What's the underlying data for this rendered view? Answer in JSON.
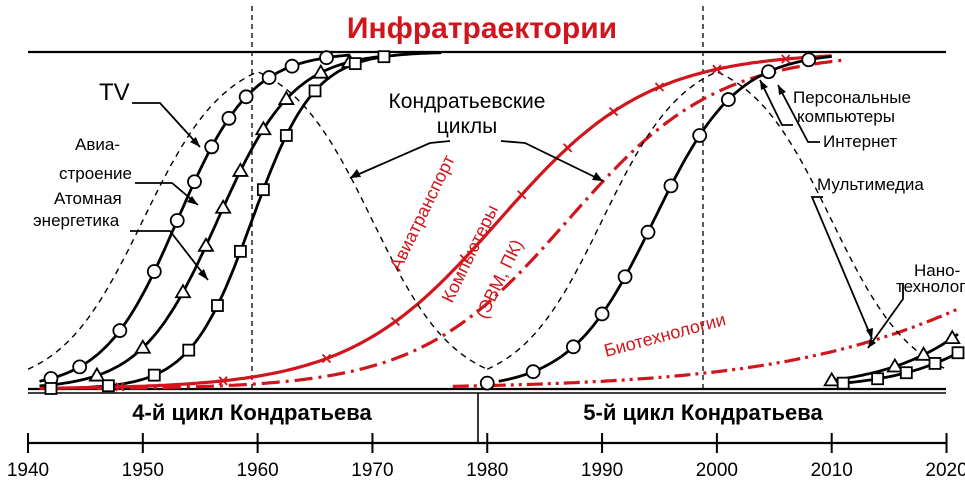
{
  "chart_data": {
    "type": "line",
    "title": "Инфратраектории",
    "title_color": "#d0161c",
    "x_ticks": [
      1940,
      1950,
      1960,
      1970,
      1980,
      1990,
      2000,
      2010,
      2020
    ],
    "x_range": [
      1940,
      2021
    ],
    "y_range": [
      0,
      1
    ],
    "grid": false,
    "vertical_markers": [
      1960,
      2000
    ],
    "cycles": [
      {
        "label": "4-й цикл Кондратьева",
        "start": 1940,
        "end": 1980
      },
      {
        "label": "5-й цикл Кондратьева",
        "start": 1980,
        "end": 2020
      }
    ],
    "series": [
      {
        "name": "TV",
        "color": "#000000",
        "style": "solid",
        "marker": "circle",
        "x_markers": [
          1942,
          1944.5,
          1948,
          1951,
          1953,
          1954.5,
          1956,
          1957.5,
          1959,
          1961,
          1963,
          1966
        ],
        "midpoint": 1953,
        "width": 3.2,
        "x_start": 1941,
        "x_end": 1968
      },
      {
        "name": "Авиастроение",
        "color": "#000000",
        "style": "solid",
        "marker": "triangle",
        "x_markers": [
          1946,
          1950,
          1953.5,
          1955.5,
          1957,
          1958.5,
          1960.5,
          1962.5,
          1965.5,
          1968
        ],
        "midpoint": 1956.5,
        "width": 3.3,
        "x_start": 1941,
        "x_end": 1971
      },
      {
        "name": "Атомная энергетика",
        "color": "#000000",
        "style": "solid",
        "marker": "square",
        "x_markers": [
          1942,
          1947,
          1951,
          1954,
          1956.5,
          1958.5,
          1960.5,
          1962.5,
          1965,
          1968.5,
          1971
        ],
        "midpoint": 1959.5,
        "width": 2.7,
        "x_start": 1941,
        "x_end": 1976
      },
      {
        "name": "Авиатранспорт",
        "color": "#d0161c",
        "style": "solid",
        "marker": "x",
        "x_markers": [
          1948,
          1957,
          1966,
          1972,
          1978,
          1983,
          1987,
          1991,
          1995,
          2000,
          2006
        ],
        "midpoint": 1981,
        "width": 6.5,
        "x_start": 1941,
        "x_end": 2010
      },
      {
        "name": "Компьютеры (ЭВМ, ПК)",
        "color": "#d0161c",
        "style": "dashdot",
        "marker": "none",
        "midpoint": 1987,
        "width": 6.5,
        "x_start": 1946,
        "x_end": 2011
      },
      {
        "name": "Биотехнологии",
        "color": "#d0161c",
        "style": "dashdotdot",
        "marker": "none",
        "midpoint": 2035,
        "width": 12,
        "x_start": 1977,
        "x_end": 2021
      },
      {
        "name": "Персональные компьютеры",
        "color": "#000000",
        "style": "solid",
        "marker": "circle",
        "x_markers": [
          1980,
          1984,
          1987.5,
          1990,
          1992,
          1994,
          1996,
          1998.5,
          2001,
          2004.5,
          2008
        ],
        "midpoint": 1994.5,
        "width": 3.6,
        "x_start": 1981,
        "x_end": 2010
      },
      {
        "name": "Мультимедиа",
        "color": "#000000",
        "style": "solid",
        "marker": "triangle",
        "x_markers": [
          2010,
          2015.5,
          2018,
          2020.5
        ],
        "midpoint": 2030,
        "width": 5.5,
        "x_start": 2010,
        "x_end": 2021
      },
      {
        "name": "Нанотехнологии",
        "color": "#000000",
        "style": "solid",
        "marker": "square",
        "x_markers": [
          2011,
          2014,
          2016.5,
          2019,
          2021
        ],
        "midpoint": 2032,
        "width": 5.2,
        "x_start": 2010,
        "x_end": 2021
      },
      {
        "name": "Кондратьевские циклы",
        "color": "#000000",
        "style": "dashed",
        "marker": "none",
        "bells": [
          {
            "center": 1960,
            "fall_width": 3.6
          },
          {
            "center": 2000,
            "fall_width": 3.6
          }
        ]
      }
    ],
    "annotations": [
      {
        "text": "TV"
      },
      {
        "text": "Авиа-"
      },
      {
        "text": "строение"
      },
      {
        "text": "Атомная"
      },
      {
        "text": "энергетика"
      },
      {
        "text": "Кондратьевские"
      },
      {
        "text": "циклы"
      },
      {
        "text": "Авиатранспорт"
      },
      {
        "text": "Компьютеры"
      },
      {
        "text": "(ЭВМ, ПК)"
      },
      {
        "text": "Биотехнологии"
      },
      {
        "text": "Персональные"
      },
      {
        "text": "компьютеры"
      },
      {
        "text": "Интернет"
      },
      {
        "text": "Мультимедиа"
      },
      {
        "text": "Нано-"
      },
      {
        "text": "технологии"
      }
    ]
  }
}
